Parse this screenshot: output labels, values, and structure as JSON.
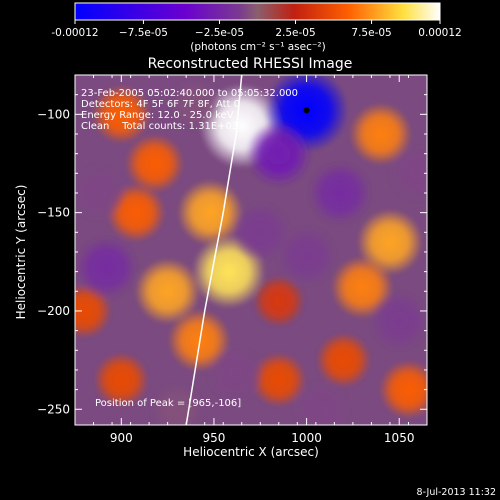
{
  "colorbar": {
    "ticks": [
      "-0.00012",
      "−7.5e-05",
      "−2.5e-05",
      "2.5e-05",
      "7.5e-05",
      "0.00012"
    ],
    "unit_label": "(photons cm⁻² s⁻¹ asec⁻²)"
  },
  "chart_data": {
    "type": "heatmap",
    "title": "Reconstructed RHESSI Image",
    "xlabel": "Heliocentric X (arcsec)",
    "ylabel": "Heliocentric Y (arcsec)",
    "xlim": [
      875,
      1065
    ],
    "ylim": [
      -258,
      -80
    ],
    "xticks": [
      900,
      950,
      1000,
      1050
    ],
    "xtick_labels": [
      "900",
      "950",
      "1000",
      "1050"
    ],
    "yticks": [
      -100,
      -150,
      -200,
      -250
    ],
    "ytick_labels": [
      "−100",
      "−150",
      "−200",
      "−250"
    ],
    "color_range": [
      -0.00012,
      0.00012
    ],
    "colormap": [
      "#0000ff",
      "#6a00d0",
      "#7a3a90",
      "#8a5f6e",
      "#c02010",
      "#ff6000",
      "#ffe040",
      "#ffffff"
    ],
    "info_lines": [
      "23-Feb-2005 05:02:40.000 to 05:05:32.000",
      "Detectors: 4F 5F 6F 7F 8F, Att 0",
      "Energy Range: 12.0 - 25.0 keV",
      "Clean    Total counts: 1.31E+03"
    ],
    "peak_label": "Position of Peak = [965,-106]",
    "peak": [
      965,
      -106
    ],
    "blobs": [
      {
        "x": 965,
        "y": -106,
        "v": 0.00012
      },
      {
        "x": 958,
        "y": -180,
        "v": 9e-05
      },
      {
        "x": 948,
        "y": -150,
        "v": 7e-05
      },
      {
        "x": 925,
        "y": -190,
        "v": 7e-05
      },
      {
        "x": 942,
        "y": -215,
        "v": 6e-05
      },
      {
        "x": 918,
        "y": -125,
        "v": 5e-05
      },
      {
        "x": 900,
        "y": -100,
        "v": 5e-05
      },
      {
        "x": 908,
        "y": -150,
        "v": 5e-05
      },
      {
        "x": 1045,
        "y": -165,
        "v": 7e-05
      },
      {
        "x": 1030,
        "y": -188,
        "v": 6e-05
      },
      {
        "x": 1040,
        "y": -110,
        "v": 6e-05
      },
      {
        "x": 1055,
        "y": -240,
        "v": 5e-05
      },
      {
        "x": 1020,
        "y": -225,
        "v": 4e-05
      },
      {
        "x": 985,
        "y": -235,
        "v": 4e-05
      },
      {
        "x": 985,
        "y": -195,
        "v": 3e-05
      },
      {
        "x": 900,
        "y": -235,
        "v": 4e-05
      },
      {
        "x": 880,
        "y": -200,
        "v": 4e-05
      },
      {
        "x": 1000,
        "y": -98,
        "v": -0.00012
      },
      {
        "x": 985,
        "y": -120,
        "v": -7e-05
      },
      {
        "x": 1018,
        "y": -140,
        "v": -6e-05
      },
      {
        "x": 975,
        "y": -160,
        "v": -5e-05
      },
      {
        "x": 892,
        "y": -178,
        "v": -6e-05
      },
      {
        "x": 1050,
        "y": -205,
        "v": -5e-05
      },
      {
        "x": 1000,
        "y": -172,
        "v": -5e-05
      },
      {
        "x": 888,
        "y": -140,
        "v": -4e-05
      },
      {
        "x": 962,
        "y": -232,
        "v": -4e-05
      },
      {
        "x": 1008,
        "y": -250,
        "v": -4e-05
      },
      {
        "x": 930,
        "y": -250,
        "v": -3e-05
      },
      {
        "x": 1060,
        "y": -130,
        "v": -4e-05
      },
      {
        "x": 940,
        "y": -95,
        "v": -3e-05
      }
    ],
    "limb_points": [
      [
        965,
        -80
      ],
      [
        962,
        -110
      ],
      [
        955,
        -150
      ],
      [
        945,
        -200
      ],
      [
        935,
        -258
      ]
    ],
    "grid": false
  },
  "footer": {
    "timestamp": "8-Jul-2013 11:32"
  }
}
